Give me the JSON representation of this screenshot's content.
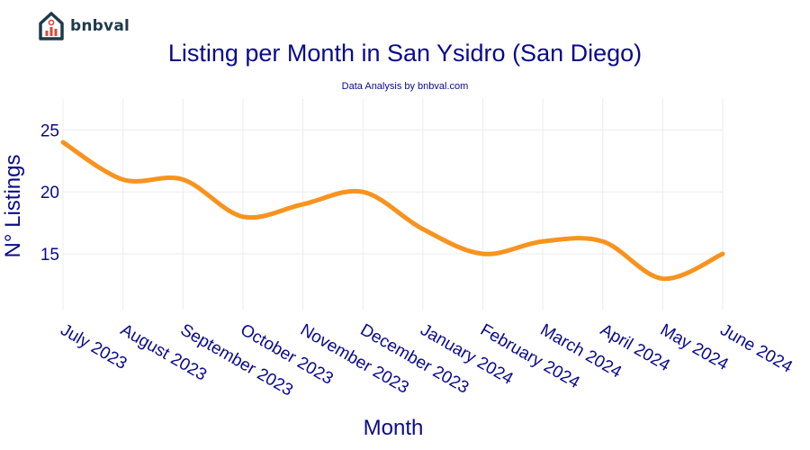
{
  "brand": {
    "name": "bnbval",
    "icon": "house-chart-icon",
    "color": "#1f3a4d",
    "accent": "#e0473a"
  },
  "chart_data": {
    "type": "line",
    "title": "Listing per Month in San Ysidro (San Diego)",
    "subtitle": "Data Analysis by bnbval.com",
    "xlabel": "Month",
    "ylabel": "N° Listings",
    "categories": [
      "July 2023",
      "August 2023",
      "September 2023",
      "October 2023",
      "November 2023",
      "December 2023",
      "January 2024",
      "February 2024",
      "March 2024",
      "April 2024",
      "May 2024",
      "June 2024"
    ],
    "series": [
      {
        "values": [
          24,
          21,
          21,
          18,
          19,
          20,
          17,
          15,
          16,
          16,
          13,
          15
        ],
        "color": "#f7931e"
      }
    ],
    "ylim": [
      10.5,
      27.5
    ],
    "yticks": [
      15,
      20,
      25
    ],
    "grid": true,
    "line_shape": "spline"
  }
}
